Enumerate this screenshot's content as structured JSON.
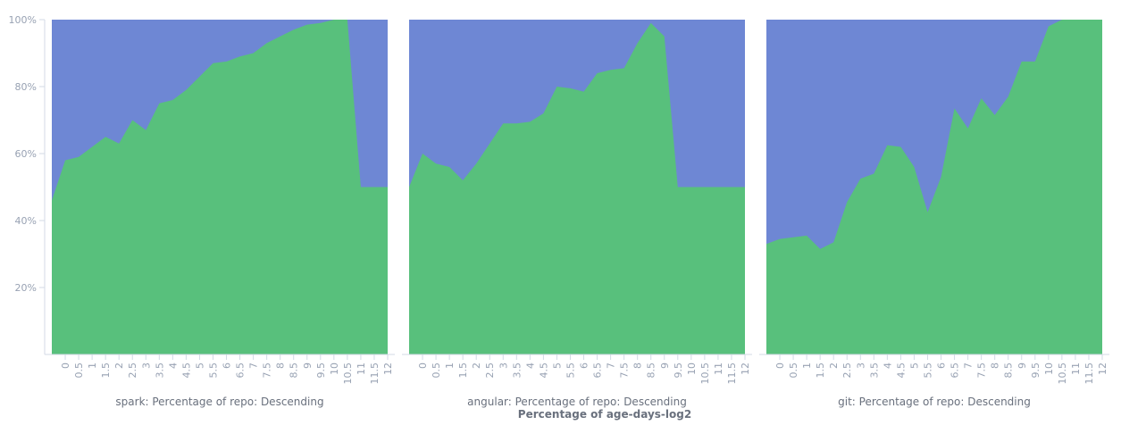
{
  "chart_data": {
    "type": "area",
    "stacked": "percent",
    "y_ticks": [
      "20%",
      "40%",
      "60%",
      "80%",
      "100%"
    ],
    "y_tick_values": [
      20,
      40,
      60,
      80,
      100
    ],
    "ylim": [
      0,
      100
    ],
    "xlim": [
      -0.5,
      12
    ],
    "x_ticks": [
      "0",
      "0.5",
      "1",
      "1.5",
      "2",
      "2.5",
      "3",
      "3.5",
      "4",
      "4.5",
      "5",
      "5.5",
      "6",
      "6.5",
      "7",
      "7.5",
      "8",
      "8.5",
      "9",
      "9.5",
      "10",
      "10.5",
      "11",
      "11.5",
      "12"
    ],
    "xlabel": "Percentage of age-days-log2",
    "ylabel": "",
    "grid": false,
    "colors": {
      "lower": "#58c07c",
      "upper": "#6e87d4"
    },
    "panels": [
      {
        "title": "spark: Percentage of repo: Descending",
        "x": [
          -0.5,
          0,
          0.5,
          1,
          1.5,
          2,
          2.5,
          3,
          3.5,
          4,
          4.5,
          5,
          5.5,
          6,
          6.5,
          7,
          7.5,
          8,
          8.5,
          9,
          9.5,
          10,
          10.5,
          11,
          11.5
        ],
        "y": [
          46,
          58,
          59,
          62,
          65,
          63,
          70,
          67,
          75,
          76,
          79,
          83,
          87,
          87.5,
          89,
          90,
          93,
          95,
          97,
          98.5,
          99,
          100,
          100,
          50,
          50
        ]
      },
      {
        "title": "angular: Percentage of repo: Descending",
        "x": [
          -0.5,
          0,
          0.5,
          1,
          1.5,
          2,
          2.5,
          3,
          3.5,
          4,
          4.5,
          5,
          5.5,
          6,
          6.5,
          7,
          7.5,
          8,
          8.5,
          9,
          9.5,
          10,
          10.5,
          11,
          11.5
        ],
        "y": [
          50,
          60,
          57,
          56,
          52,
          57,
          63,
          69,
          69,
          69.5,
          72,
          80,
          79.5,
          78.5,
          84,
          85,
          85.5,
          93,
          99,
          95,
          50,
          50,
          50,
          50,
          50
        ]
      },
      {
        "title": "git: Percentage of repo: Descending",
        "x": [
          -0.5,
          0,
          0.5,
          1,
          1.5,
          2,
          2.5,
          3,
          3.5,
          4,
          4.5,
          5,
          5.5,
          6,
          6.5,
          7,
          7.5,
          8,
          8.5,
          9,
          9.5,
          10,
          10.5,
          11,
          11.5
        ],
        "y": [
          33,
          34.5,
          35,
          35.5,
          31.5,
          33.5,
          45.5,
          52.5,
          54,
          62.5,
          62,
          56,
          42.5,
          53,
          73.5,
          67.5,
          76.5,
          71.5,
          77,
          87.5,
          87.5,
          98,
          100,
          100,
          100
        ]
      }
    ]
  }
}
